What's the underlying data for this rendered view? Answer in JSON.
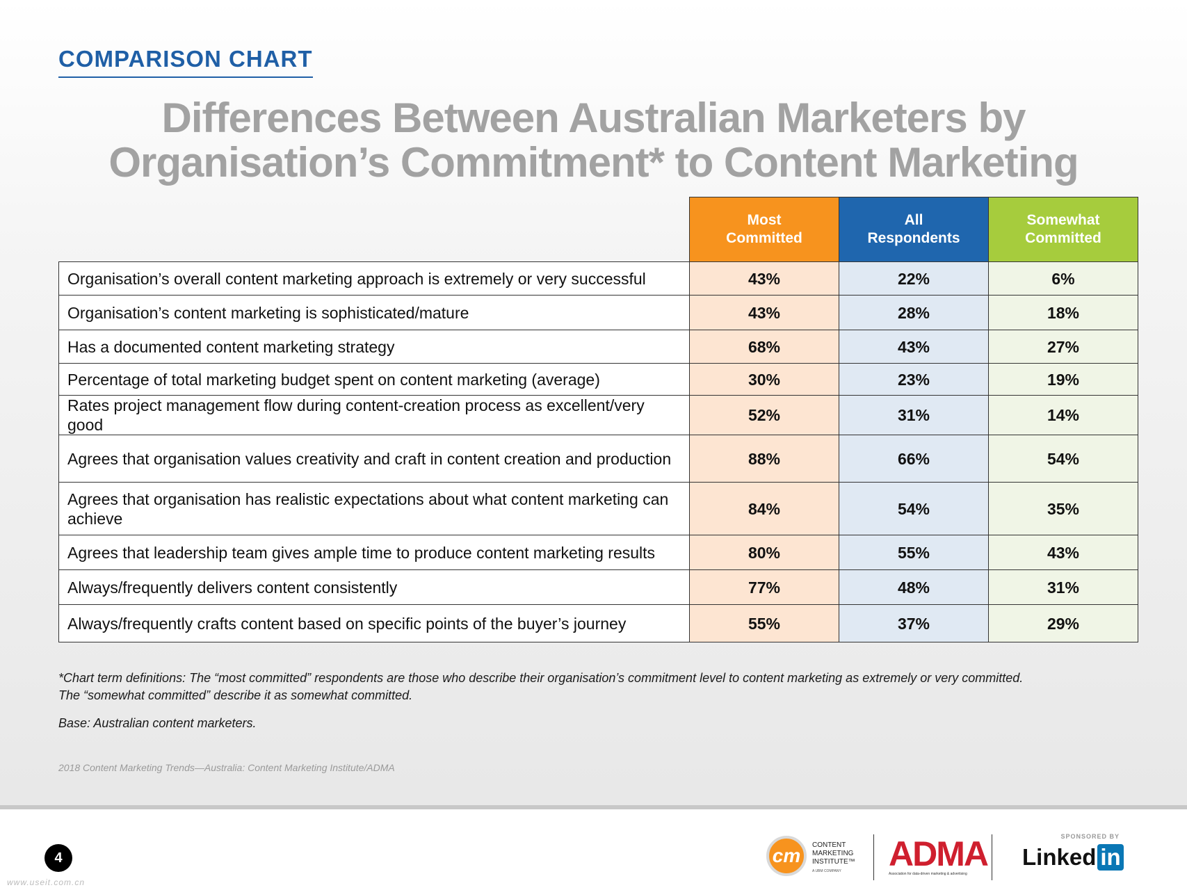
{
  "header": {
    "section_label": "COMPARISON CHART"
  },
  "title": {
    "line1": "Differences Between Australian Marketers by",
    "line2": "Organisation’s Commitment* to Content Marketing"
  },
  "chart_data": {
    "type": "table",
    "title": "Differences Between Australian Marketers by Organisation’s Commitment* to Content Marketing",
    "columns": [
      "Most\nCommitted",
      "All\nRespondents",
      "Somewhat\nCommitted"
    ],
    "column_colors": [
      "#f7931e",
      "#1f66ae",
      "#a6cc3d"
    ],
    "rows": [
      {
        "label": "Organisation’s overall content marketing approach is extremely or very successful",
        "values": [
          "43%",
          "22%",
          "6%"
        ]
      },
      {
        "label": "Organisation’s content marketing is sophisticated/mature",
        "values": [
          "43%",
          "28%",
          "18%"
        ]
      },
      {
        "label": "Has a documented content marketing strategy",
        "values": [
          "68%",
          "43%",
          "27%"
        ]
      },
      {
        "label": "Percentage of total marketing budget spent on content marketing (average)",
        "values": [
          "30%",
          "23%",
          "19%"
        ]
      },
      {
        "label": "Rates project management flow during content-creation process as excellent/very good",
        "values": [
          "52%",
          "31%",
          "14%"
        ]
      },
      {
        "label": "Agrees that organisation values creativity and craft in content creation and production",
        "values": [
          "88%",
          "66%",
          "54%"
        ]
      },
      {
        "label": "Agrees that organisation has realistic expectations about what content marketing can achieve",
        "values": [
          "84%",
          "54%",
          "35%"
        ]
      },
      {
        "label": "Agrees that leadership team gives ample time to produce content marketing results",
        "values": [
          "80%",
          "55%",
          "43%"
        ]
      },
      {
        "label": "Always/frequently delivers content consistently",
        "values": [
          "77%",
          "48%",
          "31%"
        ]
      },
      {
        "label": "Always/frequently crafts content based on  specific points of the buyer’s journey",
        "values": [
          "55%",
          "37%",
          "29%"
        ]
      }
    ]
  },
  "notes": {
    "definitions_line1": "*Chart term definitions: The “most committed” respondents are those who describe their organisation’s commitment level to content marketing as extremely or very committed.",
    "definitions_line2": "The “somewhat committed” describe it as somewhat committed.",
    "base": "Base: Australian content marketers.",
    "source": "2018 Content Marketing Trends—Australia: Content Marketing Institute/ADMA"
  },
  "footer": {
    "page_number": "4",
    "watermark": "www.useit.com.cn",
    "cmi": {
      "mark": "cm",
      "name": "CONTENT\nMARKETING\nINSTITUTE™",
      "sub": "A UBM COMPANY"
    },
    "adma": {
      "name": "ADMA",
      "sub": "Association for data-driven marketing & advertising"
    },
    "linkedin": {
      "sponsored": "SPONSORED BY",
      "word": "Linked",
      "in": "in"
    }
  }
}
